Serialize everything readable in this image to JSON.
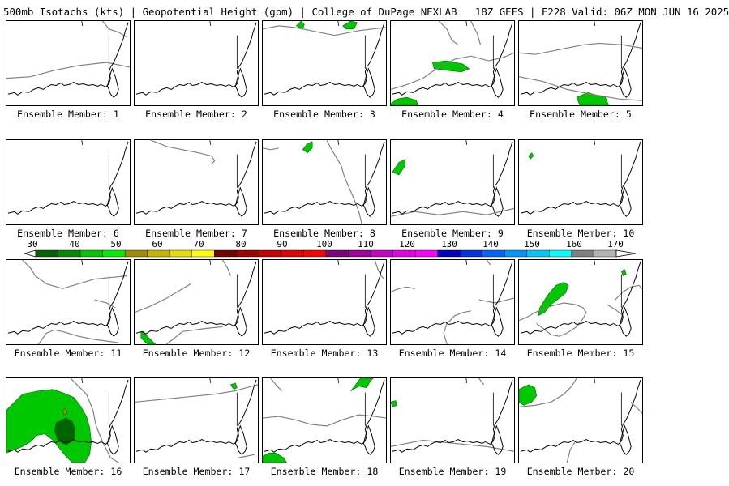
{
  "header": {
    "title": "500mb Isotachs (kts) | Geopotential Height (gpm) | College of DuPage NEXLAB   18Z GEFS | F228 Valid: 06Z MON JUN 16 2025"
  },
  "panels": [
    {
      "label": "Ensemble Member: 1"
    },
    {
      "label": "Ensemble Member: 2"
    },
    {
      "label": "Ensemble Member: 3"
    },
    {
      "label": "Ensemble Member: 4"
    },
    {
      "label": "Ensemble Member: 5"
    },
    {
      "label": "Ensemble Member: 6"
    },
    {
      "label": "Ensemble Member: 7"
    },
    {
      "label": "Ensemble Member: 8"
    },
    {
      "label": "Ensemble Member: 9"
    },
    {
      "label": "Ensemble Member: 10"
    },
    {
      "label": "Ensemble Member: 11"
    },
    {
      "label": "Ensemble Member: 12"
    },
    {
      "label": "Ensemble Member: 13"
    },
    {
      "label": "Ensemble Member: 14"
    },
    {
      "label": "Ensemble Member: 15"
    },
    {
      "label": "Ensemble Member: 16"
    },
    {
      "label": "Ensemble Member: 17"
    },
    {
      "label": "Ensemble Member: 18"
    },
    {
      "label": "Ensemble Member: 19"
    },
    {
      "label": "Ensemble Member: 20"
    }
  ],
  "colorbar": {
    "units": "kts",
    "tick_labels": [
      "30",
      "40",
      "50",
      "60",
      "70",
      "80",
      "90",
      "100",
      "110",
      "120",
      "130",
      "140",
      "150",
      "160",
      "170"
    ],
    "colors": [
      "#006400",
      "#008c00",
      "#00c800",
      "#00f000",
      "#a08c00",
      "#c8b400",
      "#e6dc00",
      "#ffff00",
      "#780000",
      "#a00000",
      "#c80000",
      "#e60000",
      "#ff0000",
      "#800080",
      "#a000a0",
      "#c800c8",
      "#e600e6",
      "#ff00ff",
      "#0000c8",
      "#0032e6",
      "#0064ff",
      "#0096ff",
      "#00c8ff",
      "#00ffff",
      "#808080",
      "#b4b4b4"
    ]
  }
}
